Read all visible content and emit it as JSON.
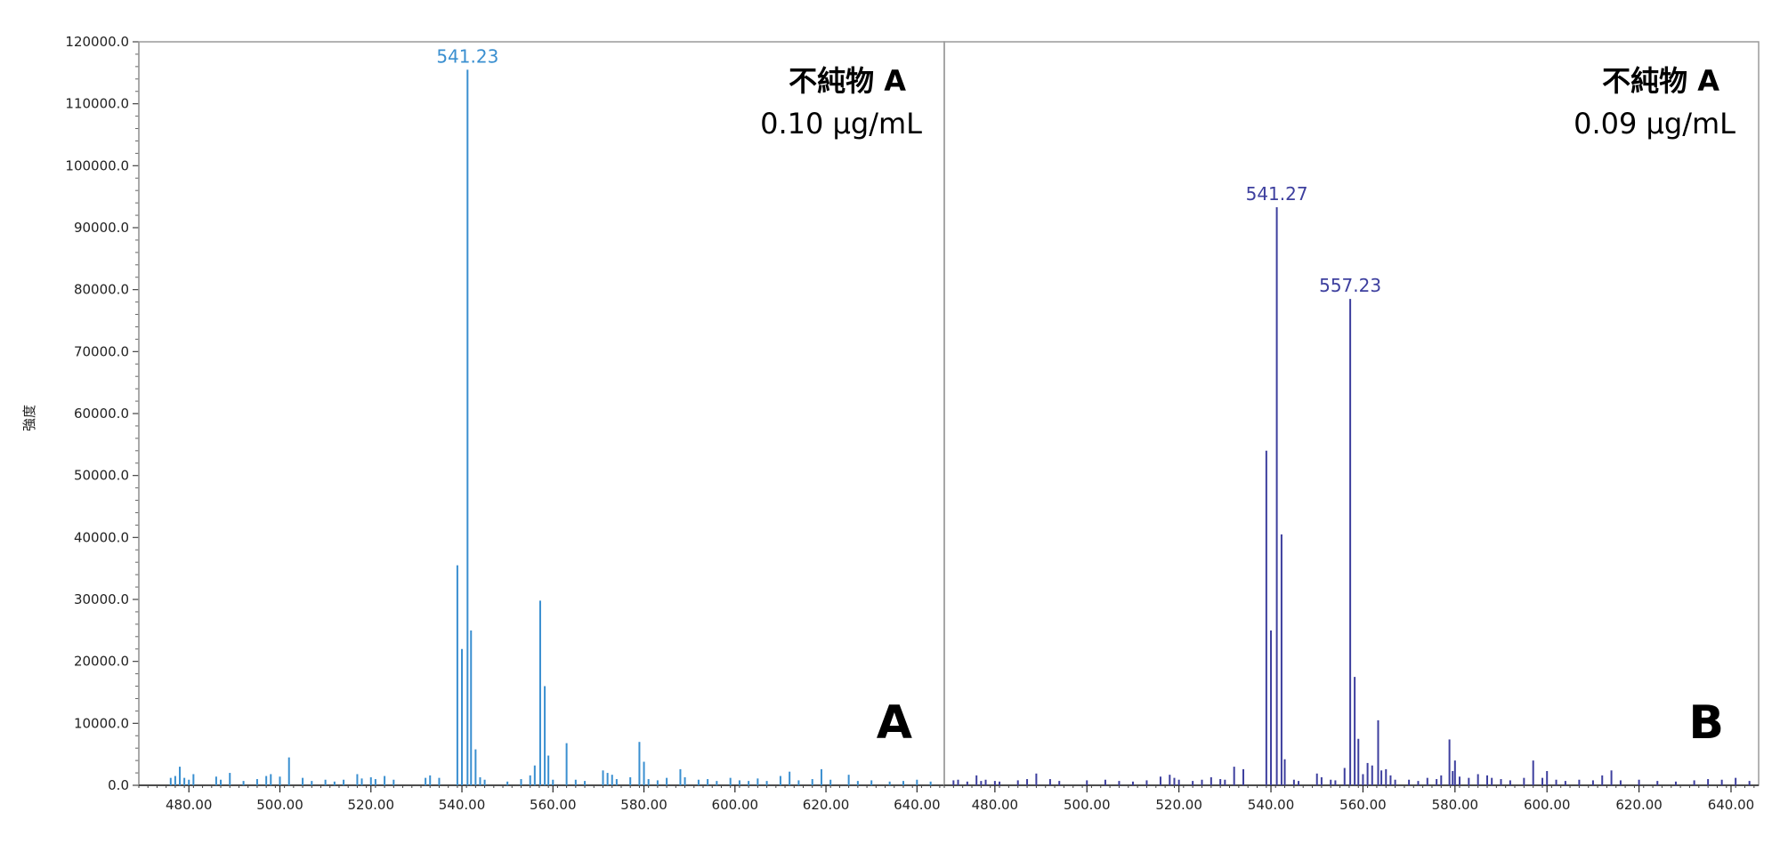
{
  "y_axis": {
    "label": "強度",
    "ticks": [
      "0.0",
      "10000.0",
      "20000.0",
      "30000.0",
      "40000.0",
      "50000.0",
      "60000.0",
      "70000.0",
      "80000.0",
      "90000.0",
      "100000.0",
      "110000.0",
      "120000.0"
    ]
  },
  "chart_data": [
    {
      "type": "bar",
      "panel": "A",
      "title": "不純物 A",
      "concentration": "0.10 µg/mL",
      "color": "#3a8fd0",
      "xlim": [
        469,
        646
      ],
      "ylim": [
        0,
        120000
      ],
      "x_ticks": [
        "480.00",
        "500.00",
        "520.00",
        "540.00",
        "560.00",
        "580.00",
        "600.00",
        "620.00",
        "640.00"
      ],
      "x_tick_values": [
        480,
        500,
        520,
        540,
        560,
        580,
        600,
        620,
        640
      ],
      "peak_labels": [
        {
          "x": 541.23,
          "y": 115500,
          "text": "541.23"
        }
      ],
      "peaks": [
        {
          "x": 476,
          "y": 1200
        },
        {
          "x": 477,
          "y": 1500
        },
        {
          "x": 478,
          "y": 3000
        },
        {
          "x": 479,
          "y": 1200
        },
        {
          "x": 480,
          "y": 900
        },
        {
          "x": 481,
          "y": 1800
        },
        {
          "x": 486,
          "y": 1400
        },
        {
          "x": 487,
          "y": 900
        },
        {
          "x": 489,
          "y": 2000
        },
        {
          "x": 492,
          "y": 700
        },
        {
          "x": 495,
          "y": 1000
        },
        {
          "x": 497,
          "y": 1500
        },
        {
          "x": 498,
          "y": 1800
        },
        {
          "x": 500,
          "y": 1400
        },
        {
          "x": 502,
          "y": 4500
        },
        {
          "x": 505,
          "y": 1200
        },
        {
          "x": 507,
          "y": 700
        },
        {
          "x": 510,
          "y": 900
        },
        {
          "x": 512,
          "y": 600
        },
        {
          "x": 514,
          "y": 900
        },
        {
          "x": 517,
          "y": 1800
        },
        {
          "x": 518,
          "y": 1100
        },
        {
          "x": 520,
          "y": 1300
        },
        {
          "x": 521,
          "y": 1000
        },
        {
          "x": 523,
          "y": 1500
        },
        {
          "x": 525,
          "y": 900
        },
        {
          "x": 532,
          "y": 1200
        },
        {
          "x": 533,
          "y": 1600
        },
        {
          "x": 535,
          "y": 1200
        },
        {
          "x": 539,
          "y": 35500
        },
        {
          "x": 540,
          "y": 22000
        },
        {
          "x": 541.23,
          "y": 115500
        },
        {
          "x": 542,
          "y": 25000
        },
        {
          "x": 543,
          "y": 5800
        },
        {
          "x": 544,
          "y": 1300
        },
        {
          "x": 545,
          "y": 900
        },
        {
          "x": 550,
          "y": 600
        },
        {
          "x": 553,
          "y": 1000
        },
        {
          "x": 555,
          "y": 1600
        },
        {
          "x": 556,
          "y": 3200
        },
        {
          "x": 557.2,
          "y": 29800
        },
        {
          "x": 558.2,
          "y": 16000
        },
        {
          "x": 559,
          "y": 4800
        },
        {
          "x": 560,
          "y": 900
        },
        {
          "x": 563,
          "y": 6800
        },
        {
          "x": 565,
          "y": 900
        },
        {
          "x": 567,
          "y": 700
        },
        {
          "x": 571,
          "y": 2400
        },
        {
          "x": 572,
          "y": 2000
        },
        {
          "x": 573,
          "y": 1700
        },
        {
          "x": 574,
          "y": 1000
        },
        {
          "x": 577,
          "y": 1300
        },
        {
          "x": 579,
          "y": 7000
        },
        {
          "x": 580,
          "y": 3800
        },
        {
          "x": 581,
          "y": 1000
        },
        {
          "x": 583,
          "y": 800
        },
        {
          "x": 585,
          "y": 1200
        },
        {
          "x": 588,
          "y": 2600
        },
        {
          "x": 589,
          "y": 1300
        },
        {
          "x": 592,
          "y": 900
        },
        {
          "x": 594,
          "y": 1000
        },
        {
          "x": 596,
          "y": 700
        },
        {
          "x": 599,
          "y": 1200
        },
        {
          "x": 601,
          "y": 800
        },
        {
          "x": 603,
          "y": 700
        },
        {
          "x": 605,
          "y": 1100
        },
        {
          "x": 607,
          "y": 700
        },
        {
          "x": 610,
          "y": 1500
        },
        {
          "x": 612,
          "y": 2200
        },
        {
          "x": 614,
          "y": 800
        },
        {
          "x": 617,
          "y": 1000
        },
        {
          "x": 619,
          "y": 2600
        },
        {
          "x": 621,
          "y": 900
        },
        {
          "x": 625,
          "y": 1700
        },
        {
          "x": 627,
          "y": 700
        },
        {
          "x": 630,
          "y": 800
        },
        {
          "x": 634,
          "y": 600
        },
        {
          "x": 637,
          "y": 700
        },
        {
          "x": 640,
          "y": 900
        },
        {
          "x": 643,
          "y": 600
        }
      ]
    },
    {
      "type": "bar",
      "panel": "B",
      "title": "不純物 A",
      "concentration": "0.09 µg/mL",
      "color": "#3d3f9e",
      "xlim": [
        469,
        646
      ],
      "ylim": [
        0,
        120000
      ],
      "x_ticks": [
        "480.00",
        "500.00",
        "520.00",
        "540.00",
        "560.00",
        "580.00",
        "600.00",
        "620.00",
        "640.00"
      ],
      "x_tick_values": [
        480,
        500,
        520,
        540,
        560,
        580,
        600,
        620,
        640
      ],
      "peak_labels": [
        {
          "x": 541.27,
          "y": 93300,
          "text": "541.27"
        },
        {
          "x": 557.23,
          "y": 78500,
          "text": "557.23"
        }
      ],
      "peaks": [
        {
          "x": 471,
          "y": 800
        },
        {
          "x": 472,
          "y": 900
        },
        {
          "x": 474,
          "y": 600
        },
        {
          "x": 476,
          "y": 1600
        },
        {
          "x": 477,
          "y": 700
        },
        {
          "x": 478,
          "y": 900
        },
        {
          "x": 480,
          "y": 700
        },
        {
          "x": 481,
          "y": 600
        },
        {
          "x": 485,
          "y": 800
        },
        {
          "x": 487,
          "y": 1000
        },
        {
          "x": 489,
          "y": 1900
        },
        {
          "x": 492,
          "y": 1000
        },
        {
          "x": 494,
          "y": 700
        },
        {
          "x": 500,
          "y": 800
        },
        {
          "x": 504,
          "y": 900
        },
        {
          "x": 507,
          "y": 700
        },
        {
          "x": 510,
          "y": 600
        },
        {
          "x": 513,
          "y": 800
        },
        {
          "x": 516,
          "y": 1400
        },
        {
          "x": 518,
          "y": 1700
        },
        {
          "x": 519,
          "y": 1200
        },
        {
          "x": 520,
          "y": 900
        },
        {
          "x": 523,
          "y": 700
        },
        {
          "x": 525,
          "y": 900
        },
        {
          "x": 527,
          "y": 1300
        },
        {
          "x": 529,
          "y": 1000
        },
        {
          "x": 530,
          "y": 900
        },
        {
          "x": 532,
          "y": 3000
        },
        {
          "x": 534,
          "y": 2600
        },
        {
          "x": 539,
          "y": 54000
        },
        {
          "x": 540,
          "y": 25000
        },
        {
          "x": 541.27,
          "y": 93300
        },
        {
          "x": 542.3,
          "y": 40500
        },
        {
          "x": 543,
          "y": 4200
        },
        {
          "x": 545,
          "y": 900
        },
        {
          "x": 546,
          "y": 700
        },
        {
          "x": 550,
          "y": 1900
        },
        {
          "x": 551,
          "y": 1300
        },
        {
          "x": 553,
          "y": 900
        },
        {
          "x": 554,
          "y": 800
        },
        {
          "x": 556,
          "y": 2800
        },
        {
          "x": 557.23,
          "y": 78500
        },
        {
          "x": 558.2,
          "y": 17500
        },
        {
          "x": 559,
          "y": 7500
        },
        {
          "x": 560,
          "y": 1800
        },
        {
          "x": 561,
          "y": 3600
        },
        {
          "x": 562,
          "y": 3200
        },
        {
          "x": 563.3,
          "y": 10500
        },
        {
          "x": 564,
          "y": 2400
        },
        {
          "x": 565,
          "y": 2600
        },
        {
          "x": 566,
          "y": 1600
        },
        {
          "x": 567,
          "y": 900
        },
        {
          "x": 570,
          "y": 900
        },
        {
          "x": 572,
          "y": 700
        },
        {
          "x": 574,
          "y": 1200
        },
        {
          "x": 576,
          "y": 1000
        },
        {
          "x": 577,
          "y": 1600
        },
        {
          "x": 578.8,
          "y": 7400
        },
        {
          "x": 579.5,
          "y": 2300
        },
        {
          "x": 580,
          "y": 4000
        },
        {
          "x": 581,
          "y": 1400
        },
        {
          "x": 583,
          "y": 1200
        },
        {
          "x": 585,
          "y": 1800
        },
        {
          "x": 587,
          "y": 1600
        },
        {
          "x": 588,
          "y": 1200
        },
        {
          "x": 590,
          "y": 1000
        },
        {
          "x": 592,
          "y": 800
        },
        {
          "x": 595,
          "y": 1200
        },
        {
          "x": 597,
          "y": 4000
        },
        {
          "x": 599,
          "y": 1200
        },
        {
          "x": 600,
          "y": 2300
        },
        {
          "x": 602,
          "y": 900
        },
        {
          "x": 604,
          "y": 700
        },
        {
          "x": 607,
          "y": 900
        },
        {
          "x": 610,
          "y": 800
        },
        {
          "x": 612,
          "y": 1600
        },
        {
          "x": 614,
          "y": 2400
        },
        {
          "x": 616,
          "y": 800
        },
        {
          "x": 620,
          "y": 900
        },
        {
          "x": 624,
          "y": 700
        },
        {
          "x": 628,
          "y": 600
        },
        {
          "x": 632,
          "y": 800
        },
        {
          "x": 635,
          "y": 1000
        },
        {
          "x": 638,
          "y": 900
        },
        {
          "x": 641,
          "y": 1200
        },
        {
          "x": 644,
          "y": 700
        }
      ]
    }
  ]
}
